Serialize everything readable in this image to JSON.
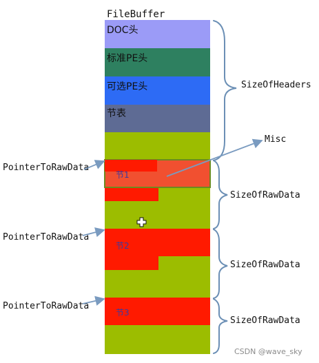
{
  "title": "FileBuffer",
  "blocks": {
    "dos": "DOC头",
    "std_pe": "标准PE头",
    "opt_pe": "可选PE头",
    "section_table": "节表"
  },
  "sections": [
    "节1",
    "节2",
    "节3"
  ],
  "labels": {
    "size_of_headers": "SizeOfHeaders",
    "misc": "Misc",
    "pointer": "PointerToRawData",
    "size_of_raw": "SizeOfRawData"
  },
  "watermark": "CSDN @wave_sky",
  "colors": {
    "dos": "#9b9bf7",
    "std_pe": "#2e8060",
    "opt_pe": "#2d6bf5",
    "section_table": "#5e6b94",
    "padding": "#9cbd00",
    "section_red": "#ff1a00",
    "highlight": "#f15030",
    "arrow": "#7a9bc0",
    "brace": "#6b8fb5"
  }
}
